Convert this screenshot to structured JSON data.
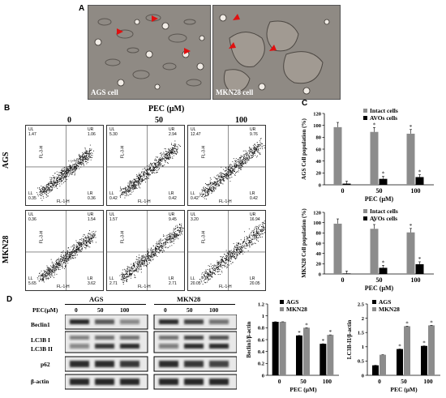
{
  "panel_labels": {
    "a": "A",
    "b": "B",
    "c": "C",
    "d": "D"
  },
  "panel_a": {
    "images": [
      {
        "label": "AGS cell"
      },
      {
        "label": "MKN28 cell"
      }
    ]
  },
  "panel_b": {
    "title": "PEC (μM)",
    "columns": [
      "0",
      "50",
      "100"
    ],
    "rows": [
      "AGS",
      "MKN28"
    ],
    "axis_labels": {
      "y": "FL-3-H",
      "x": "FL-1-H"
    },
    "quadrant_names": {
      "ul": "UL",
      "ur": "UR",
      "ll": "LL",
      "lr": "LR"
    },
    "plots": [
      {
        "ul": "1.47",
        "ur": "1.06",
        "ll": "0.35",
        "lr": "0.36"
      },
      {
        "ul": "5.30",
        "ur": "2.94",
        "ll": "0.42",
        "lr": "0.42"
      },
      {
        "ul": "12.47",
        "ur": "9.76",
        "ll": "0.42",
        "lr": "0.42"
      },
      {
        "ul": "0.36",
        "ur": "1.54",
        "ll": "5.65",
        "lr": "3.62"
      },
      {
        "ul": "1.57",
        "ur": "9.45",
        "ll": "2.71",
        "lr": "2.71"
      },
      {
        "ul": "3.20",
        "ur": "16.94",
        "ll": "20.05",
        "lr": "20.05"
      }
    ]
  },
  "chart_data": [
    {
      "type": "bar",
      "panel": "C-top",
      "categories": [
        "0",
        "50",
        "100"
      ],
      "series": [
        {
          "name": "Intact cells",
          "values": [
            97,
            89,
            86
          ],
          "color": "#8c8c8c"
        },
        {
          "name": "AVOs cells",
          "values": [
            2,
            10,
            13
          ],
          "color": "#000000"
        }
      ],
      "xlabel": "PEC (μM)",
      "ylabel": "AGS Cell population (%)",
      "ylim": [
        0,
        120
      ],
      "yticks": [
        "0",
        "20",
        "40",
        "60",
        "80",
        "100",
        "120"
      ]
    },
    {
      "type": "bar",
      "panel": "C-bottom",
      "categories": [
        "0",
        "50",
        "100"
      ],
      "series": [
        {
          "name": "Intact cells",
          "values": [
            98,
            88,
            81
          ],
          "color": "#8c8c8c"
        },
        {
          "name": "AVOs cells",
          "values": [
            1,
            12,
            19
          ],
          "color": "#000000"
        }
      ],
      "xlabel": "PEC (μM)",
      "ylabel": "MKN28 Cell population (%)",
      "ylim": [
        0,
        120
      ],
      "yticks": [
        "0",
        "20",
        "40",
        "60",
        "80",
        "100",
        "120"
      ]
    },
    {
      "type": "bar",
      "panel": "D-beclin",
      "categories": [
        "0",
        "50",
        "100"
      ],
      "series": [
        {
          "name": "AGS",
          "values": [
            0.9,
            0.67,
            0.53
          ],
          "color": "#000000"
        },
        {
          "name": "MKN28",
          "values": [
            0.9,
            0.8,
            0.68
          ],
          "color": "#8c8c8c"
        }
      ],
      "xlabel": "PEC (μM)",
      "ylabel": "Beclin1/β-actin",
      "ylim": [
        0,
        1.2
      ],
      "yticks": [
        "0",
        "0.2",
        "0.4",
        "0.6",
        "0.8",
        "1",
        "1.2"
      ]
    },
    {
      "type": "bar",
      "panel": "D-lc3b",
      "categories": [
        "0",
        "50",
        "100"
      ],
      "series": [
        {
          "name": "AGS",
          "values": [
            0.35,
            0.92,
            1.03
          ],
          "color": "#000000"
        },
        {
          "name": "MKN28",
          "values": [
            0.72,
            1.72,
            1.75
          ],
          "color": "#8c8c8c"
        }
      ],
      "xlabel": "PEC (μM)",
      "ylabel": "LC3B-II/β-actin",
      "ylim": [
        0,
        2.5
      ],
      "yticks": [
        "0",
        "0.5",
        "1",
        "1.5",
        "2",
        "2.5"
      ]
    }
  ],
  "panel_d_blot": {
    "title_left": "AGS",
    "title_right": "MKN28",
    "conc_label": "PEC(μM)",
    "conc": [
      "0",
      "50",
      "100"
    ],
    "rows": [
      "Beclin1",
      "LC3B I",
      "LC3B II",
      "p62",
      "β-actin"
    ]
  }
}
